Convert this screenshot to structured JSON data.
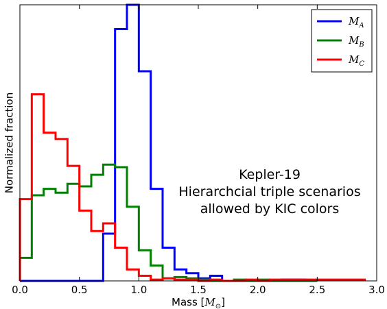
{
  "chart_data": {
    "type": "histogram-step",
    "xlabel": "Mass [M⊙]",
    "ylabel": "Normalized fraction",
    "xlim": [
      0.0,
      3.0
    ],
    "ylim": [
      0.0,
      1.08
    ],
    "xticks": [
      "0.0",
      "0.5",
      "1.0",
      "1.5",
      "2.0",
      "2.5",
      "3.0"
    ],
    "yticks": [],
    "grid": false,
    "legend_position": "top-right",
    "annotation": [
      "Kepler-19",
      "Hierarchcial triple scenarios",
      "allowed by KIC colors"
    ],
    "series": [
      {
        "name": "M_A",
        "label_main": "M",
        "label_sub": "A",
        "color": "#0000ff",
        "edges": [
          0.0,
          0.1,
          0.2,
          0.3,
          0.4,
          0.5,
          0.6,
          0.7,
          0.8,
          0.9,
          1.0,
          1.1,
          1.2,
          1.3,
          1.4,
          1.5,
          1.6,
          1.7,
          1.8,
          1.9,
          2.0,
          2.1,
          2.2,
          2.3,
          2.4,
          2.5
        ],
        "values": [
          0.0,
          0.0,
          0.0,
          0.0,
          0.0,
          0.0,
          0.0,
          0.185,
          0.985,
          1.08,
          0.82,
          0.36,
          0.13,
          0.045,
          0.03,
          0.01,
          0.02,
          0.0,
          0.0,
          0.0,
          0.0,
          0.0,
          0.005,
          0.005,
          0.0
        ]
      },
      {
        "name": "M_B",
        "label_main": "M",
        "label_sub": "B",
        "color": "#008000",
        "edges": [
          0.0,
          0.1,
          0.2,
          0.3,
          0.4,
          0.5,
          0.6,
          0.7,
          0.8,
          0.9,
          1.0,
          1.1,
          1.2,
          1.3,
          1.4,
          1.5,
          1.6,
          1.7,
          1.8,
          1.9,
          2.0,
          2.1,
          2.2,
          2.3,
          2.4,
          2.5
        ],
        "values": [
          0.09,
          0.335,
          0.36,
          0.345,
          0.38,
          0.37,
          0.415,
          0.455,
          0.445,
          0.29,
          0.12,
          0.06,
          0.01,
          0.015,
          0.01,
          0.005,
          0.0,
          0.0,
          0.005,
          0.0,
          0.005,
          0.0,
          0.0,
          0.0,
          0.0
        ]
      },
      {
        "name": "M_C",
        "label_main": "M",
        "label_sub": "C",
        "color": "#ff0000",
        "edges": [
          0.0,
          0.1,
          0.2,
          0.3,
          0.4,
          0.5,
          0.6,
          0.7,
          0.8,
          0.9,
          1.0,
          1.1,
          1.2,
          1.3,
          1.4,
          1.5,
          1.6,
          1.7,
          1.8,
          1.9,
          2.0,
          2.1,
          2.2,
          2.3,
          2.4,
          2.5,
          2.6,
          2.7,
          2.8,
          2.9
        ],
        "values": [
          0.32,
          0.73,
          0.58,
          0.555,
          0.45,
          0.275,
          0.195,
          0.225,
          0.13,
          0.045,
          0.02,
          0.005,
          0.01,
          0.005,
          0.005,
          0.0,
          0.005,
          0.0,
          0.0,
          0.005,
          0.0,
          0.005,
          0.005,
          0.005,
          0.005,
          0.005,
          0.005,
          0.005,
          0.005
        ]
      }
    ]
  }
}
